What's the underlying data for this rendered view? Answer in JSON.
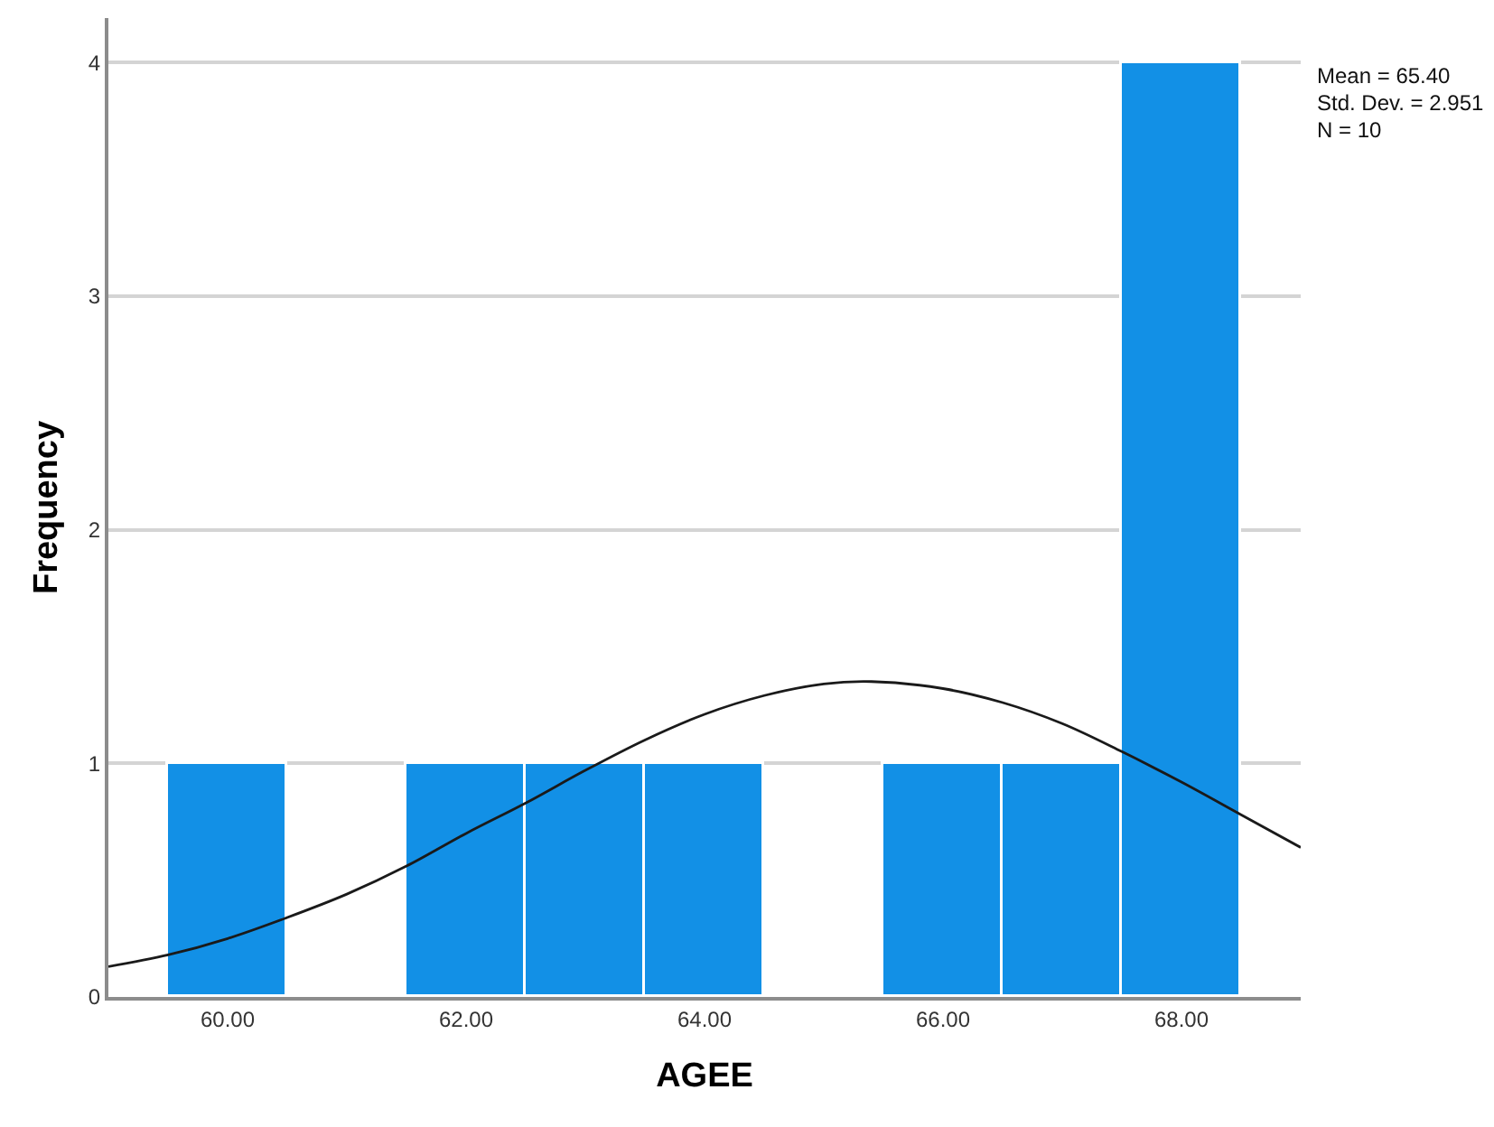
{
  "chart_data": {
    "type": "histogram",
    "xlabel": "AGEE",
    "ylabel": "Frequency",
    "bins": [
      59.5,
      60.5,
      61.5,
      62.5,
      63.5,
      64.5,
      65.5,
      66.5,
      67.5,
      68.5
    ],
    "series": [
      {
        "color": "#1290e6",
        "values": [
          1,
          0,
          1,
          1,
          1,
          0,
          1,
          1,
          4
        ]
      },
      {
        "type": "line",
        "color": "#1a1a1a",
        "x": [
          59,
          59.5,
          60,
          60.5,
          61,
          61.5,
          62,
          62.5,
          63,
          63.5,
          64,
          64.5,
          65,
          65.4,
          66,
          66.5,
          67,
          67.5,
          68,
          68.5,
          69
        ],
        "values": [
          0.13,
          0.18,
          0.25,
          0.34,
          0.44,
          0.56,
          0.7,
          0.83,
          0.97,
          1.1,
          1.21,
          1.29,
          1.34,
          1.35,
          1.32,
          1.26,
          1.17,
          1.05,
          0.92,
          0.78,
          0.64
        ]
      }
    ],
    "xlim": [
      59,
      69
    ],
    "ylim": [
      0,
      4.19
    ],
    "xticks": [
      {
        "value": 60,
        "label": "60.00"
      },
      {
        "value": 62,
        "label": "62.00"
      },
      {
        "value": 64,
        "label": "64.00"
      },
      {
        "value": 66,
        "label": "66.00"
      },
      {
        "value": 68,
        "label": "68.00"
      }
    ],
    "yticks": [
      0,
      1,
      2,
      3,
      4
    ],
    "grid": "y",
    "annotations": [
      "Mean = 65.40",
      "Std. Dev. = 2.951",
      "N = 10"
    ]
  }
}
